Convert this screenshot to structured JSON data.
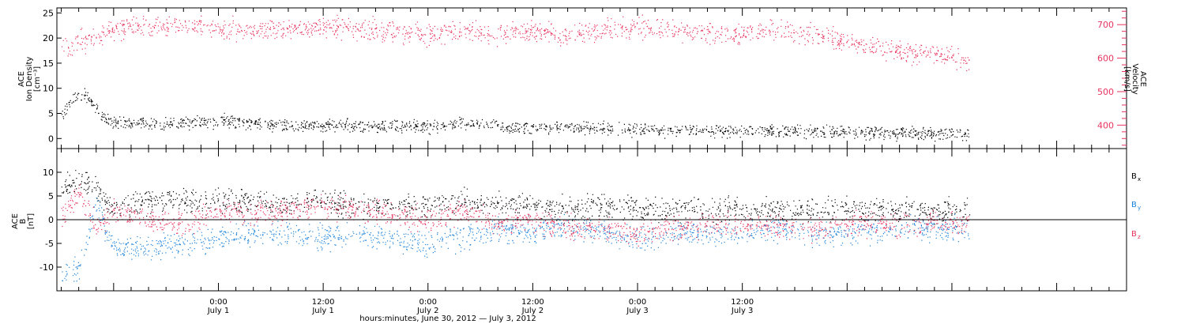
{
  "colors": {
    "black": "#000000",
    "red": "#e8335f",
    "blue": "#1f84db"
  },
  "chart_data": [
    {
      "type": "scatter",
      "panel": "top",
      "ylabel_left": [
        "ACE",
        "Ion Density",
        "[cm⁻³]"
      ],
      "ylabel_right": [
        "ACE",
        "Velocity",
        "[km/s]"
      ],
      "left_axis": {
        "ylim": [
          -2,
          26
        ],
        "ticks": [
          0,
          5,
          10,
          15,
          20,
          25
        ],
        "color": "#000000"
      },
      "right_axis": {
        "ylim": [
          330,
          750
        ],
        "ticks": [
          400,
          500,
          600,
          700
        ],
        "color": "#e8335f"
      },
      "series": [
        {
          "axis": "right",
          "color": "#e8335f",
          "x": [
            -18,
            -14,
            -10,
            -8,
            -4,
            0,
            4,
            8,
            12,
            16,
            20,
            24,
            28,
            32,
            36,
            40,
            44,
            48,
            52,
            56,
            60,
            64,
            68,
            72,
            76,
            80,
            84,
            86
          ],
          "y": [
            630,
            660,
            700,
            690,
            700,
            690,
            680,
            690,
            690,
            690,
            680,
            670,
            680,
            670,
            680,
            670,
            680,
            690,
            685,
            670,
            670,
            680,
            670,
            650,
            630,
            615,
            600,
            580
          ]
        },
        {
          "axis": "left",
          "color": "#000000",
          "x": [
            -18,
            -17,
            -16,
            -15,
            -14,
            -13,
            -12,
            -8,
            -4,
            0,
            4,
            8,
            12,
            16,
            20,
            24,
            28,
            32,
            36,
            40,
            44,
            48,
            52,
            56,
            60,
            64,
            68,
            72,
            76,
            80,
            84,
            86
          ],
          "y": [
            5,
            7,
            9,
            8,
            6,
            4,
            3,
            3,
            3,
            3.5,
            3.2,
            2.5,
            2.5,
            2.5,
            2.5,
            2.5,
            3,
            2.5,
            2,
            2.2,
            2,
            1.8,
            1.6,
            1.6,
            1.4,
            1.6,
            1.2,
            1.2,
            1,
            1,
            1,
            0.8
          ]
        }
      ]
    },
    {
      "type": "scatter",
      "panel": "bottom",
      "ylabel_left": [
        "ACE",
        "B",
        "[nT]"
      ],
      "ylim": [
        -15,
        15
      ],
      "ticks": [
        -10,
        -5,
        0,
        5,
        10
      ],
      "zero_line": true,
      "series": [
        {
          "name": "Bx",
          "label_main": "B",
          "label_sub": "x",
          "color": "#000000",
          "x": [
            -18,
            -16,
            -14,
            -12,
            -8,
            -4,
            0,
            4,
            8,
            12,
            16,
            20,
            24,
            28,
            32,
            36,
            40,
            44,
            48,
            52,
            56,
            60,
            64,
            68,
            72,
            76,
            80,
            84,
            86
          ],
          "y": [
            7,
            8,
            6,
            2,
            4,
            4,
            4,
            4,
            3,
            4,
            3,
            3,
            3,
            4,
            3,
            3,
            2,
            3,
            2,
            2,
            2,
            2,
            2,
            2,
            2,
            2,
            2,
            2,
            2
          ]
        },
        {
          "name": "By",
          "label_main": "B",
          "label_sub": "y",
          "color": "#1f84db",
          "x": [
            -18,
            -16,
            -14,
            -12,
            -8,
            -4,
            0,
            4,
            8,
            12,
            16,
            20,
            24,
            28,
            32,
            36,
            40,
            44,
            48,
            52,
            56,
            60,
            64,
            68,
            72,
            76,
            80,
            84,
            86
          ],
          "y": [
            -12,
            -10,
            3,
            -6,
            -6,
            -5,
            -4,
            -3,
            -3,
            -4,
            -3,
            -4,
            -5,
            -4,
            -2,
            -3,
            -1,
            -3,
            -4,
            -3,
            -3,
            -3,
            -2,
            -3,
            -3,
            -2,
            -2,
            -2,
            -2
          ]
        },
        {
          "name": "Bz",
          "label_main": "B",
          "label_sub": "z",
          "color": "#e8335f",
          "x": [
            -18,
            -16,
            -14,
            -12,
            -8,
            -4,
            0,
            4,
            8,
            12,
            16,
            20,
            24,
            28,
            32,
            36,
            40,
            44,
            48,
            52,
            56,
            60,
            64,
            68,
            72,
            76,
            80,
            84,
            86
          ],
          "y": [
            0,
            6,
            -2,
            2,
            0,
            -1,
            2,
            1,
            2,
            3,
            2,
            1,
            0,
            2,
            -1,
            0,
            -2,
            -2,
            -3,
            -2,
            -1,
            -1,
            -1,
            -2,
            -1,
            -1,
            -1,
            -1,
            0
          ]
        }
      ]
    }
  ],
  "x_axis": {
    "xlim": [
      -18.5,
      104
    ],
    "ticks": [
      {
        "x": 0,
        "time": "0:00",
        "date": "July 1"
      },
      {
        "x": 12,
        "time": "12:00",
        "date": "July 1"
      },
      {
        "x": 24,
        "time": "0:00",
        "date": "July 2"
      },
      {
        "x": 36,
        "time": "12:00",
        "date": "July 2"
      },
      {
        "x": 48,
        "time": "0:00",
        "date": "July 3"
      },
      {
        "x": 60,
        "time": "12:00",
        "date": "July 3"
      }
    ],
    "label": "hours:minutes, June 30, 2012 — July  3, 2012"
  }
}
